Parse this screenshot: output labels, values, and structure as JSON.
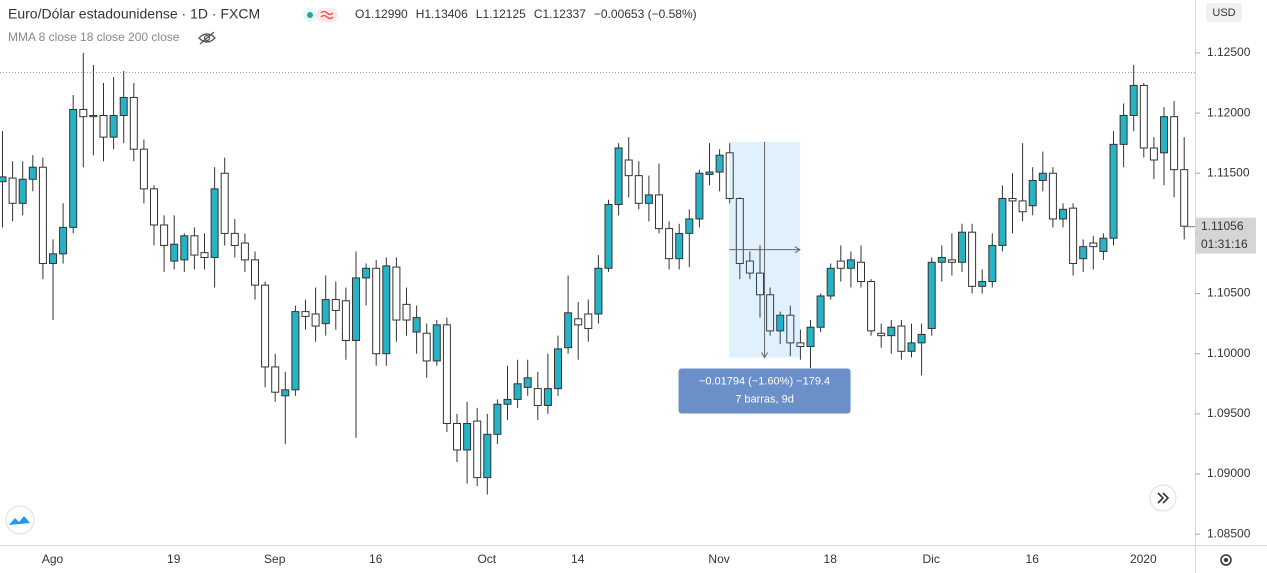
{
  "chart_data": {
    "type": "candlestick",
    "title": "Euro/Dólar estadounidense · 1D · FXCM",
    "ohlc_header": [
      "O1.12990",
      "H1.13406",
      "L1.12125",
      "C1.12337",
      "−0.00653 (−0.58%)"
    ],
    "indicators": "MMA 8 close 18 close 200 close",
    "currency": "USD",
    "up_color": "#26b3c5",
    "down_color": "#ffffff",
    "categories": [
      null,
      null,
      null,
      null,
      null,
      "Ago",
      null,
      null,
      null,
      null,
      null,
      null,
      null,
      null,
      null,
      null,
      null,
      "19",
      null,
      null,
      null,
      null,
      null,
      null,
      null,
      null,
      null,
      "Sep",
      null,
      null,
      null,
      null,
      null,
      null,
      null,
      null,
      null,
      "16",
      null,
      null,
      null,
      null,
      null,
      null,
      null,
      null,
      null,
      null,
      "Oct",
      null,
      null,
      null,
      null,
      null,
      null,
      null,
      null,
      "14",
      null,
      null,
      null,
      null,
      null,
      null,
      null,
      null,
      null,
      null,
      null,
      null,
      null,
      "Nov",
      null,
      null,
      null,
      null,
      null,
      null,
      null,
      null,
      null,
      null,
      "18",
      null,
      null,
      null,
      null,
      null,
      null,
      null,
      null,
      null,
      "Dic",
      null,
      null,
      null,
      null,
      null,
      null,
      null,
      null,
      null,
      "16",
      null,
      null,
      null,
      null,
      null,
      null,
      null,
      null,
      null,
      null,
      "2020",
      null,
      null,
      null,
      null
    ],
    "open": [
      1.1143,
      1.1146,
      1.1125,
      1.1145,
      1.1155,
      1.1075,
      1.1083,
      1.1105,
      1.1203,
      1.1198,
      1.1198,
      1.118,
      1.1198,
      1.1213,
      1.117,
      1.1137,
      1.1107,
      1.1077,
      1.1078,
      1.1098,
      1.1084,
      1.108,
      1.115,
      1.11,
      1.1092,
      1.1078,
      1.1057,
      1.0989,
      1.0965,
      1.097,
      1.1035,
      1.1033,
      1.1025,
      1.1045,
      1.1044,
      1.1011,
      1.1063,
      1.1071,
      1.1,
      1.1072,
      1.1041,
      1.1018,
      1.1017,
      1.0994,
      1.1024,
      1.0942,
      1.092,
      1.0944,
      1.0897,
      1.0933,
      1.0958,
      1.0962,
      1.0972,
      1.0971,
      1.0957,
      1.0971,
      1.1005,
      1.1029,
      1.1033,
      1.1033,
      1.1071,
      1.1124,
      1.1161,
      1.1148,
      1.1125,
      1.1132,
      1.1104,
      1.1079,
      1.11,
      1.1112,
      1.1149,
      1.1151,
      1.1167,
      1.1129,
      1.1077,
      1.1067,
      1.1049,
      1.1019,
      1.1032,
      1.1009,
      1.1006,
      1.1022,
      1.1048,
      1.1077,
      1.1071,
      1.1076,
      1.106,
      1.1017,
      1.1015,
      1.1023,
      1.1002,
      1.1009,
      1.1021,
      1.1076,
      1.1078,
      1.1076,
      1.1101,
      1.1056,
      1.106,
      1.109,
      1.1129,
      1.1127,
      1.1123,
      1.1144,
      1.115,
      1.1112,
      1.1121,
      1.1079,
      1.1092,
      1.1085,
      1.1096,
      1.1174,
      1.1198,
      1.1223,
      1.1171,
      1.1167,
      1.1197,
      1.1153
    ],
    "high": [
      1.1185,
      1.116,
      1.116,
      1.1165,
      1.1163,
      1.1095,
      1.1125,
      1.1215,
      1.125,
      1.124,
      1.1225,
      1.123,
      1.1235,
      1.1225,
      1.1178,
      1.114,
      1.1115,
      1.1115,
      1.11,
      1.1105,
      1.11,
      1.1155,
      1.1163,
      1.1112,
      1.11,
      1.1085,
      1.106,
      1.1,
      1.0985,
      1.104,
      1.1045,
      1.1055,
      1.1065,
      1.106,
      1.1055,
      1.1085,
      1.1075,
      1.1078,
      1.108,
      1.108,
      1.1055,
      1.104,
      1.1025,
      1.1028,
      1.103,
      1.095,
      1.096,
      1.0955,
      1.095,
      1.0962,
      1.099,
      1.0995,
      1.0995,
      1.0985,
      1.1,
      1.1015,
      1.1065,
      1.1043,
      1.1045,
      1.1082,
      1.1128,
      1.1175,
      1.118,
      1.116,
      1.1148,
      1.1158,
      1.111,
      1.1108,
      1.112,
      1.1153,
      1.1175,
      1.117,
      1.1175,
      1.113,
      1.1085,
      1.109,
      1.1055,
      1.1035,
      1.104,
      1.102,
      1.1028,
      1.105,
      1.1075,
      1.109,
      1.1085,
      1.109,
      1.1062,
      1.1025,
      1.1028,
      1.1028,
      1.1025,
      1.1025,
      1.108,
      1.109,
      1.11,
      1.1108,
      1.1108,
      1.107,
      1.11,
      1.114,
      1.115,
      1.1175,
      1.1155,
      1.1168,
      1.1155,
      1.1125,
      1.1125,
      1.1095,
      1.1098,
      1.11,
      1.1185,
      1.1208,
      1.124,
      1.1225,
      1.118,
      1.1205,
      1.121,
      1.118
    ],
    "low": [
      1.1105,
      1.111,
      1.1115,
      1.1135,
      1.1062,
      1.1028,
      1.1075,
      1.11,
      1.1155,
      1.1165,
      1.116,
      1.117,
      1.1175,
      1.116,
      1.1125,
      1.109,
      1.1068,
      1.107,
      1.1068,
      1.107,
      1.107,
      1.1055,
      1.109,
      1.108,
      1.1068,
      1.1045,
      1.0972,
      1.096,
      1.0925,
      1.0965,
      1.102,
      1.101,
      1.1015,
      1.102,
      1.0995,
      1.093,
      1.104,
      1.099,
      1.099,
      1.101,
      1.1015,
      1.1,
      1.098,
      1.099,
      1.0935,
      1.091,
      1.0892,
      1.089,
      1.0883,
      1.0925,
      1.0945,
      1.0955,
      1.0965,
      1.0945,
      1.095,
      1.0965,
      1.1,
      1.0995,
      1.101,
      1.1025,
      1.1068,
      1.1115,
      1.113,
      1.112,
      1.111,
      1.11,
      1.107,
      1.107,
      1.1072,
      1.1105,
      1.114,
      1.1135,
      1.1125,
      1.1062,
      1.1062,
      1.103,
      1.1015,
      1.1008,
      1.0998,
      1.0995,
      1.0988,
      1.1018,
      1.1045,
      1.106,
      1.1055,
      1.1055,
      1.1015,
      1.1005,
      1.1,
      1.0995,
      1.0997,
      1.0982,
      1.1015,
      1.106,
      1.1065,
      1.1068,
      1.105,
      1.105,
      1.1055,
      1.1085,
      1.11,
      1.111,
      1.1115,
      1.1135,
      1.1105,
      1.1105,
      1.1065,
      1.1068,
      1.107,
      1.1078,
      1.109,
      1.1155,
      1.1185,
      1.1163,
      1.1145,
      1.114,
      1.113,
      1.1095
    ],
    "close": [
      1.1147,
      1.1125,
      1.1145,
      1.1155,
      1.1075,
      1.1083,
      1.1105,
      1.1203,
      1.1197,
      1.1197,
      1.118,
      1.1198,
      1.1213,
      1.117,
      1.1137,
      1.1107,
      1.109,
      1.1091,
      1.1098,
      1.1082,
      1.108,
      1.1137,
      1.11,
      1.109,
      1.1078,
      1.1057,
      1.0989,
      1.0968,
      1.097,
      1.1035,
      1.1031,
      1.1023,
      1.1045,
      1.1036,
      1.1011,
      1.1063,
      1.1071,
      1.1,
      1.1073,
      1.1028,
      1.1028,
      1.103,
      1.0994,
      1.1024,
      1.0942,
      1.092,
      1.0942,
      1.0897,
      1.0933,
      1.0958,
      1.0962,
      1.0975,
      1.098,
      1.0957,
      1.0971,
      1.1004,
      1.1034,
      1.1024,
      1.1021,
      1.1071,
      1.1124,
      1.1171,
      1.1148,
      1.1125,
      1.1132,
      1.1104,
      1.1079,
      1.11,
      1.1112,
      1.115,
      1.1151,
      1.1165,
      1.1129,
      1.1075,
      1.1067,
      1.1049,
      1.1019,
      1.1032,
      1.1009,
      1.1006,
      1.1022,
      1.1048,
      1.1071,
      1.1071,
      1.1078,
      1.106,
      1.1019,
      1.1015,
      1.1022,
      1.1002,
      1.1009,
      1.1016,
      1.1076,
      1.108,
      1.1076,
      1.1101,
      1.1056,
      1.106,
      1.109,
      1.1129,
      1.1127,
      1.1118,
      1.1144,
      1.115,
      1.1112,
      1.112,
      1.1075,
      1.1089,
      1.1089,
      1.1096,
      1.1174,
      1.1198,
      1.1223,
      1.1171,
      1.1161,
      1.1197,
      1.1153,
      1.1106
    ],
    "ylim": [
      1.0841,
      1.1294
    ],
    "yticks": [
      {
        "value": 1.125,
        "label": "1.12500"
      },
      {
        "value": 1.12,
        "label": "1.12000"
      },
      {
        "value": 1.115,
        "label": "1.11500"
      },
      {
        "value": 1.11,
        "label": "1.11000"
      },
      {
        "value": 1.105,
        "label": "1.10500"
      },
      {
        "value": 1.1,
        "label": "1.10000"
      },
      {
        "value": 1.095,
        "label": "1.09500"
      },
      {
        "value": 1.09,
        "label": "1.09000"
      },
      {
        "value": 1.085,
        "label": "1.08500"
      }
    ],
    "price_line": 1.12337,
    "last_price": {
      "value": 1.11056,
      "label": "1.11056"
    },
    "countdown": "01:31:16",
    "measure": {
      "start_index": 72,
      "end_index": 79,
      "start": 1.11762,
      "end": 1.09968,
      "text": "−0.01794 (−1.60%) −179.4",
      "bars": "7 barras, 9d"
    }
  }
}
